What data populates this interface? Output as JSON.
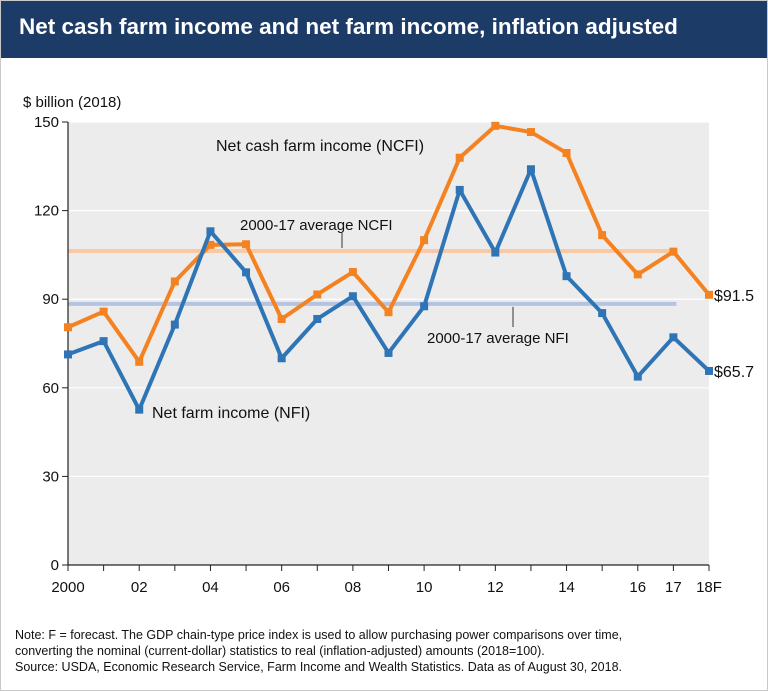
{
  "title": "Net cash farm income and net farm income, inflation adjusted",
  "notes": {
    "line1": "Note: F = forecast. The GDP chain-type price index is used to allow purchasing power comparisons over time,",
    "line2": "converting the nominal (current-dollar) statistics to real (inflation-adjusted) amounts (2018=100).",
    "line3": "Source: USDA, Economic Research Service, Farm Income and Wealth Statistics. Data as of August 30, 2018."
  },
  "colors": {
    "ncfi": "#f58220",
    "nfi": "#2f75b5",
    "avg_ncfi": "#f8c9a4",
    "avg_nfi": "#b3c3e0",
    "plot_bg": "#ececec",
    "grid": "#ffffff",
    "title_bar": "#1c3b67"
  },
  "chart_data": {
    "type": "line",
    "title": "Net cash farm income and net farm income, inflation adjusted",
    "ylabel": "$ billion (2018)",
    "xlabel": "",
    "ylim": [
      0,
      150
    ],
    "yticks": [
      0,
      30,
      60,
      90,
      120,
      150
    ],
    "x": [
      2000,
      2001,
      2002,
      2003,
      2004,
      2005,
      2006,
      2007,
      2008,
      2009,
      2010,
      2011,
      2012,
      2013,
      2014,
      2015,
      2016,
      2017,
      2018
    ],
    "xtick_labels": [
      {
        "x": 2000,
        "label": "2000"
      },
      {
        "x": 2002,
        "label": "02"
      },
      {
        "x": 2004,
        "label": "04"
      },
      {
        "x": 2006,
        "label": "06"
      },
      {
        "x": 2008,
        "label": "08"
      },
      {
        "x": 2010,
        "label": "10"
      },
      {
        "x": 2012,
        "label": "12"
      },
      {
        "x": 2014,
        "label": "14"
      },
      {
        "x": 2016,
        "label": "16"
      },
      {
        "x": 2017,
        "label": "17"
      },
      {
        "x": 2018,
        "label": "18F"
      }
    ],
    "grid": true,
    "series": [
      {
        "name": "Net cash farm income (NCFI)",
        "color": "#f58220",
        "values": [
          80.5,
          85.8,
          68.8,
          96.0,
          108.4,
          108.6,
          83.3,
          91.6,
          99.2,
          85.6,
          110.0,
          137.9,
          148.7,
          146.6,
          139.5,
          111.7,
          98.4,
          106.1,
          91.5
        ],
        "end_label": "$91.5"
      },
      {
        "name": "Net farm income (NFI)",
        "color": "#2f75b5",
        "values": [
          71.3,
          75.8,
          52.6,
          81.4,
          113.0,
          99.1,
          70.0,
          83.3,
          91.0,
          71.8,
          87.6,
          127.0,
          105.8,
          134.0,
          97.8,
          85.3,
          63.8,
          77.1,
          65.7
        ],
        "end_label": "$65.7"
      }
    ],
    "reference_lines": [
      {
        "name": "2000-17 average NCFI",
        "value": 106.3,
        "color": "#f8c9a4"
      },
      {
        "name": "2000-17 average NFI",
        "value": 88.4,
        "color": "#b3c3e0"
      }
    ]
  }
}
